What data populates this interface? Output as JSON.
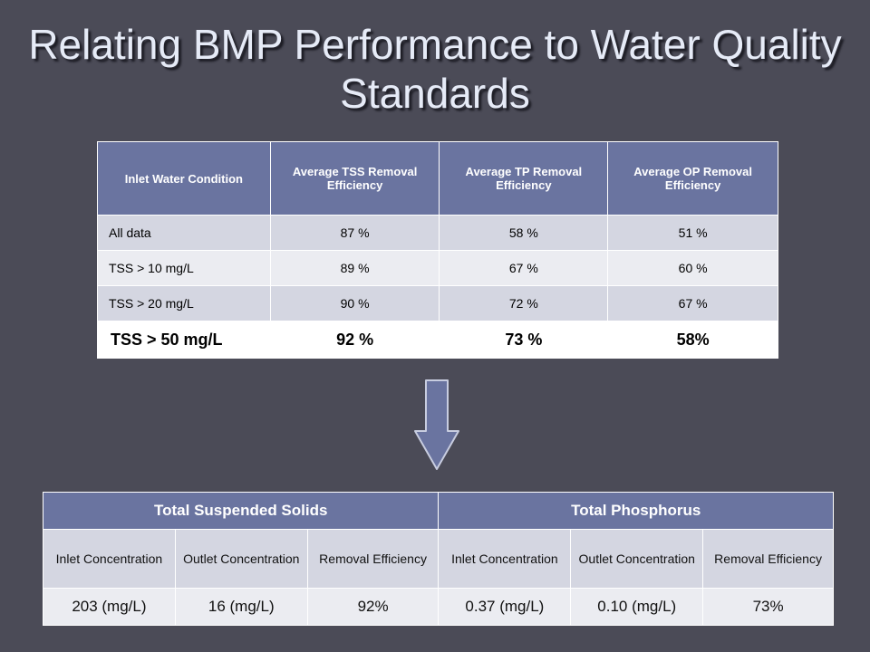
{
  "slide": {
    "title": "Relating BMP Performance to Water Quality Standards"
  },
  "efficiency_table": {
    "headers": [
      "Inlet Water Condition",
      "Average TSS Removal Efficiency",
      "Average TP Removal Efficiency",
      "Average OP Removal Efficiency"
    ],
    "rows": [
      [
        "All data",
        "87 %",
        "58 %",
        "51 %"
      ],
      [
        "TSS > 10 mg/L",
        "89 %",
        "67 %",
        "60 %"
      ],
      [
        "TSS > 20 mg/L",
        "90 %",
        "72 %",
        "67 %"
      ],
      [
        "TSS > 50 mg/L",
        "92 %",
        "73 %",
        "58%"
      ]
    ]
  },
  "concentration_table": {
    "group_headers": [
      "Total Suspended Solids",
      "Total Phosphorus"
    ],
    "subheaders": [
      "Inlet Concentration",
      "Outlet Concentration",
      "Removal Efficiency",
      "Inlet Concentration",
      "Outlet Concentration",
      "Removal Efficiency"
    ],
    "values": [
      "203 (mg/L)",
      "16 (mg/L)",
      "92%",
      "0.37 (mg/L)",
      "0.10 (mg/L)",
      "73%"
    ]
  },
  "arrow": {
    "icon": "down-arrow-icon",
    "fill": "#6a74a0",
    "stroke": "#c8cde0"
  }
}
